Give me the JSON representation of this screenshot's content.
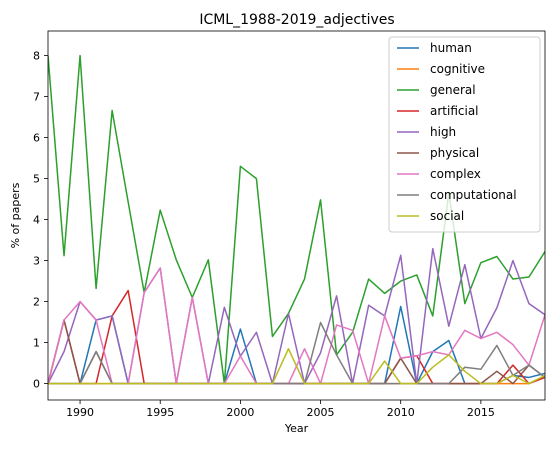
{
  "chart_data": {
    "type": "line",
    "title": "ICML_1988-2019_adjectives",
    "xlabel": "Year",
    "ylabel": "% of papers",
    "xlim": [
      1988,
      2019
    ],
    "ylim": [
      -0.4,
      8.6
    ],
    "xticks": [
      1990,
      1995,
      2000,
      2005,
      2010,
      2015
    ],
    "yticks": [
      0,
      1,
      2,
      3,
      4,
      5,
      6,
      7,
      8
    ],
    "grid": false,
    "legend_position": "upper-right",
    "x": [
      1988,
      1989,
      1990,
      1991,
      1992,
      1993,
      1994,
      1995,
      1996,
      1997,
      1998,
      1999,
      2000,
      2001,
      2002,
      2003,
      2004,
      2005,
      2006,
      2007,
      2008,
      2009,
      2010,
      2011,
      2012,
      2013,
      2014,
      2015,
      2016,
      2017,
      2018,
      2019
    ],
    "series": [
      {
        "name": "human",
        "color": "#1f77b4",
        "values": [
          0,
          0,
          0,
          1.55,
          1.65,
          0,
          0,
          0,
          0,
          0,
          0,
          0,
          1.33,
          0,
          0,
          0,
          0,
          0,
          0,
          0,
          0,
          0,
          1.88,
          0,
          0.78,
          1.05,
          0,
          0,
          0,
          0.2,
          0.15,
          0.25
        ]
      },
      {
        "name": "cognitive",
        "color": "#ff7f0e",
        "values": [
          0,
          0,
          0,
          0,
          0,
          0,
          0,
          0,
          0,
          0,
          0,
          0,
          0,
          0,
          0,
          0,
          0,
          0,
          0,
          0,
          0,
          0,
          0,
          0,
          0,
          0,
          0,
          0,
          0,
          0,
          0,
          0.18
        ]
      },
      {
        "name": "general",
        "color": "#2ca02c",
        "values": [
          8,
          3.12,
          8,
          2.32,
          6.66,
          4.43,
          2.22,
          4.23,
          3.02,
          2.1,
          3.02,
          0,
          5.3,
          5,
          1.15,
          1.71,
          2.55,
          4.48,
          0.7,
          1.25,
          2.55,
          2.2,
          2.5,
          2.65,
          1.65,
          4.65,
          1.95,
          2.95,
          3.1,
          2.55,
          2.6,
          3.22
        ]
      },
      {
        "name": "artificial",
        "color": "#d62728",
        "values": [
          0,
          1.55,
          0,
          0,
          1.65,
          2.27,
          0,
          0,
          0,
          0,
          0,
          0,
          0,
          0,
          0,
          0,
          0,
          0,
          0,
          0,
          0,
          0,
          0.62,
          0.68,
          0,
          0,
          0,
          0,
          0,
          0.45,
          0,
          0.15
        ]
      },
      {
        "name": "high",
        "color": "#9467bd",
        "values": [
          0,
          0.78,
          2,
          1.55,
          1.65,
          0,
          2.22,
          2.82,
          0,
          2.1,
          0,
          1.86,
          0.67,
          1.25,
          0,
          1.71,
          0,
          0.75,
          2.14,
          0,
          1.91,
          1.65,
          3.13,
          0,
          3.29,
          1.4,
          2.9,
          1.1,
          1.85,
          3,
          1.95,
          1.68
        ]
      },
      {
        "name": "physical",
        "color": "#8c564b",
        "values": [
          0,
          1.55,
          0,
          0.78,
          0,
          0,
          0,
          0,
          0,
          0,
          0,
          0,
          0,
          0,
          0,
          0,
          0,
          0,
          0,
          0,
          0,
          0,
          0.62,
          0,
          0,
          0,
          0,
          0,
          0.3,
          0,
          0.45,
          0.15
        ]
      },
      {
        "name": "complex",
        "color": "#e377c2",
        "values": [
          0,
          1.55,
          2,
          1.55,
          0,
          0,
          2.22,
          2.82,
          0,
          2.1,
          0,
          0,
          0.67,
          0,
          0,
          0,
          0.85,
          0,
          1.43,
          1.3,
          0,
          1.65,
          0.62,
          0.68,
          0.78,
          0.7,
          1.3,
          1.1,
          1.25,
          0.95,
          0.45,
          1.68
        ]
      },
      {
        "name": "computational",
        "color": "#7f7f7f",
        "values": [
          0,
          0,
          0,
          0.78,
          0,
          0,
          0,
          0,
          0,
          0,
          0,
          0,
          0,
          0,
          0,
          0,
          0,
          1.49,
          0.7,
          0,
          0,
          0,
          0,
          0,
          0,
          0,
          0.4,
          0.35,
          0.93,
          0.2,
          0.45,
          0.15
        ]
      },
      {
        "name": "social",
        "color": "#bcbd22",
        "values": [
          0,
          0,
          0,
          0,
          0,
          0,
          0,
          0,
          0,
          0,
          0,
          0,
          0,
          0,
          0,
          0.85,
          0,
          0,
          0,
          0,
          0,
          0.55,
          0,
          0,
          0.4,
          0.7,
          0.3,
          0,
          0,
          0.2,
          0,
          0.2
        ]
      }
    ]
  }
}
